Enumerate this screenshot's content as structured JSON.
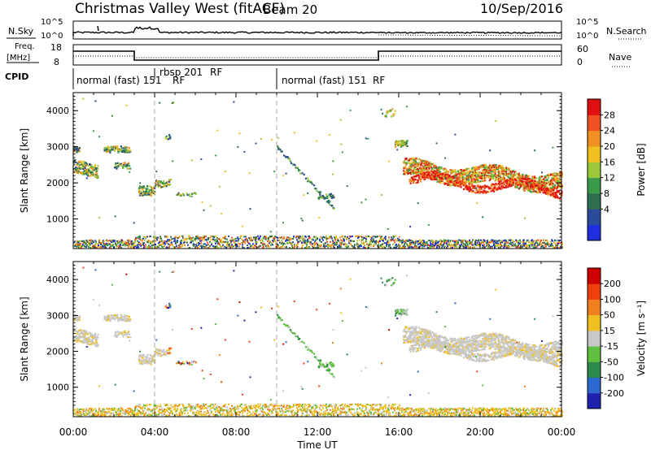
{
  "header": {
    "station": "Christmas Valley West (fitACF)",
    "beam": "Beam 20",
    "date": "10/Sep/2016"
  },
  "panels": {
    "nsky": {
      "left_label": "N.Sky",
      "right_label": "N.Search",
      "left_ticks": [
        "10^5",
        "10^0"
      ],
      "right_ticks": [
        "10^5",
        "10^0"
      ]
    },
    "freq": {
      "left_label_1": "Freq.",
      "left_label_2": "[MHz]",
      "right_label": "Nave",
      "left_ticks": [
        "18",
        "8"
      ],
      "right_ticks": [
        "60",
        "0"
      ]
    },
    "cpid": {
      "label": "CPID",
      "segments": [
        "normal (fast) 151",
        "rbsp 201",
        "RF",
        "RF",
        "normal (fast) 151",
        "RF"
      ]
    }
  },
  "chart_data": [
    {
      "type": "heatmap",
      "name": "power",
      "ylabel": "Slant Range [km]",
      "y_ticks": [
        1000,
        2000,
        3000,
        4000
      ],
      "ylim": [
        180,
        4500
      ],
      "xlim": [
        0,
        24
      ],
      "colorbar": {
        "label": "Power [dB]",
        "ticks": [
          "28",
          "24",
          "20",
          "16",
          "12",
          "8",
          "4"
        ],
        "colors": [
          "#1f2fe0",
          "#2a4a9a",
          "#2e6e4e",
          "#3a9a4a",
          "#9ac83a",
          "#f0c020",
          "#f09020",
          "#f05020",
          "#e01010"
        ]
      }
    },
    {
      "type": "heatmap",
      "name": "velocity",
      "ylabel": "Slant Range [km]",
      "y_ticks": [
        1000,
        2000,
        3000,
        4000
      ],
      "ylim": [
        180,
        4500
      ],
      "xlim": [
        0,
        24
      ],
      "colorbar": {
        "label": "Velocity [m s⁻¹]",
        "ticks": [
          "200",
          "100",
          "50",
          "15",
          "-15",
          "-50",
          "-100",
          "-200"
        ],
        "colors": [
          "#2020b0",
          "#2a6ad0",
          "#2e8a4a",
          "#60c040",
          "#c8c8c8",
          "#f0c020",
          "#f08020",
          "#f04010",
          "#d00000"
        ]
      }
    }
  ],
  "x_axis": {
    "label": "Time UT",
    "ticks": [
      "00:00",
      "04:00",
      "08:00",
      "12:00",
      "16:00",
      "20:00",
      "00:00"
    ]
  }
}
